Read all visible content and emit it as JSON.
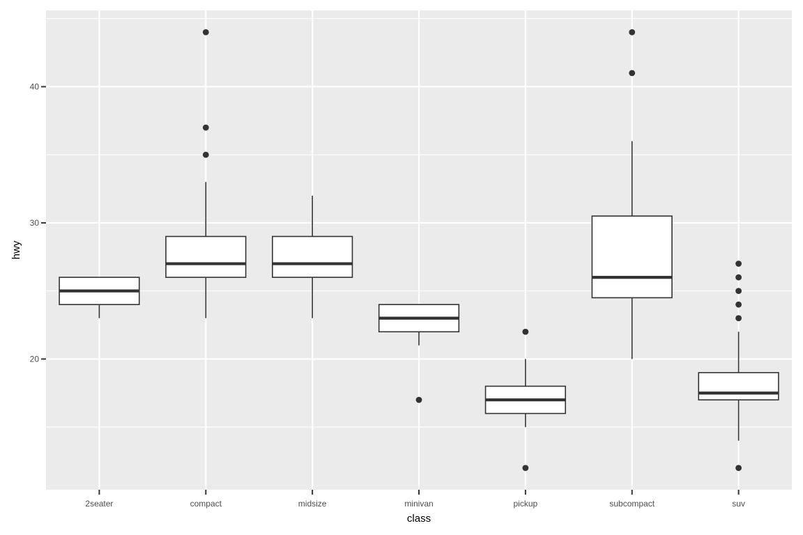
{
  "chart_data": {
    "type": "boxplot",
    "title": "",
    "xlabel": "class",
    "ylabel": "hwy",
    "ylim": [
      10.4,
      45.6
    ],
    "y_ticks_major": [
      20,
      30,
      40
    ],
    "y_ticks_minor": [
      15,
      25,
      35,
      45
    ],
    "y_tick_labels": [
      "20",
      "30",
      "40"
    ],
    "grid": true,
    "legend": "none",
    "colors": {
      "panel_bg": "#ebebeb",
      "grid": "#ffffff",
      "box_fill": "#ffffff",
      "box_stroke": "#333333",
      "outlier": "#333333",
      "tick_text": "#4d4d4d",
      "axis_title": "#000000"
    },
    "categories": [
      "2seater",
      "compact",
      "midsize",
      "minivan",
      "pickup",
      "subcompact",
      "suv"
    ],
    "boxes": [
      {
        "category": "2seater",
        "whisker_low": 23,
        "q1": 24,
        "median": 25,
        "q3": 26,
        "whisker_high": 26,
        "outliers": []
      },
      {
        "category": "compact",
        "whisker_low": 23,
        "q1": 26,
        "median": 27,
        "q3": 29,
        "whisker_high": 33,
        "outliers": [
          35,
          37,
          44
        ]
      },
      {
        "category": "midsize",
        "whisker_low": 23,
        "q1": 26,
        "median": 27,
        "q3": 29,
        "whisker_high": 32,
        "outliers": []
      },
      {
        "category": "minivan",
        "whisker_low": 21,
        "q1": 22,
        "median": 23,
        "q3": 24,
        "whisker_high": 24,
        "outliers": [
          17
        ]
      },
      {
        "category": "pickup",
        "whisker_low": 15,
        "q1": 16,
        "median": 17,
        "q3": 18,
        "whisker_high": 20,
        "outliers": [
          12,
          22
        ]
      },
      {
        "category": "subcompact",
        "whisker_low": 20,
        "q1": 24.5,
        "median": 26,
        "q3": 30.5,
        "whisker_high": 36,
        "outliers": [
          41,
          44
        ]
      },
      {
        "category": "suv",
        "whisker_low": 14,
        "q1": 17,
        "median": 17.5,
        "q3": 19,
        "whisker_high": 22,
        "outliers": [
          12,
          23,
          24,
          25,
          26,
          27
        ]
      }
    ]
  }
}
